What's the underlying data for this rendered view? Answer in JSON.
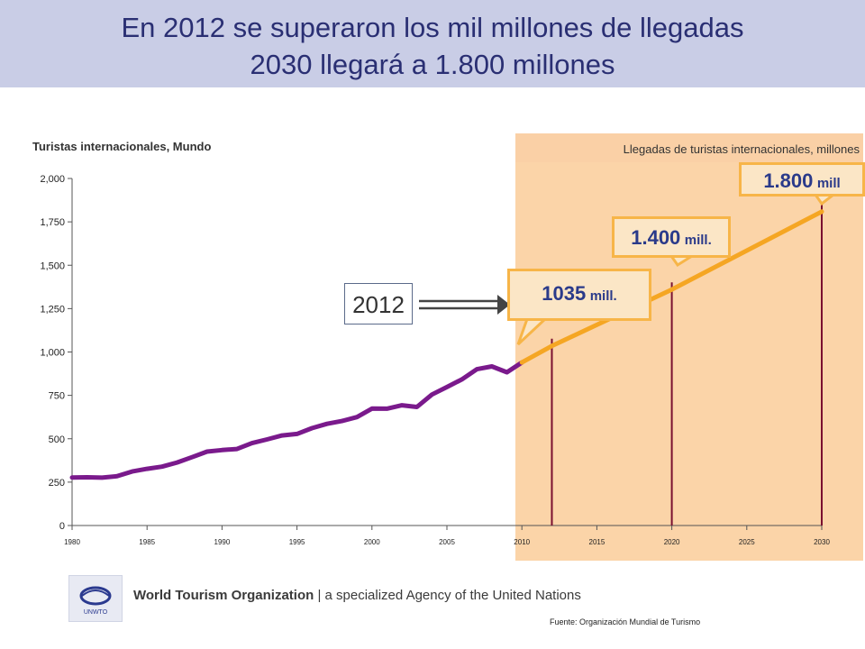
{
  "header": {
    "title_line1": "En 2012 se superaron los mil millones de llegadas",
    "title_line2": "2030 llegará a 1.800 millones"
  },
  "chart_data": {
    "type": "line",
    "title": "Turistas internacionales, Mundo",
    "forecast_caption": "Llegadas de turistas internacionales, millones",
    "xlim": [
      1980,
      2030
    ],
    "ylim": [
      0,
      2000
    ],
    "x_ticks": [
      "1980",
      "1985",
      "1990",
      "1995",
      "2000",
      "2005",
      "2010",
      "2015",
      "2020",
      "2025",
      "2030"
    ],
    "y_ticks": [
      "0",
      "250",
      "500",
      "750",
      "1,000",
      "1,250",
      "1,500",
      "1,750",
      "2,000"
    ],
    "series": [
      {
        "color": "#7a1a8c",
        "x": [
          1980,
          1981,
          1982,
          1983,
          1984,
          1985,
          1986,
          1987,
          1988,
          1989,
          1990,
          1991,
          1992,
          1993,
          1994,
          1995,
          1996,
          1997,
          1998,
          1999,
          2000,
          2001,
          2002,
          2003,
          2004,
          2005,
          2006,
          2007,
          2008,
          2009,
          2010
        ],
        "y": [
          277,
          278,
          276,
          284,
          311,
          327,
          339,
          363,
          394,
          426,
          435,
          441,
          475,
          496,
          519,
          528,
          561,
          586,
          602,
          625,
          674,
          673,
          693,
          683,
          755,
          798,
          842,
          901,
          917,
          883,
          940
        ]
      },
      {
        "color": "#f5a623",
        "x": [
          2010,
          2012,
          2020,
          2030
        ],
        "y": [
          940,
          1035,
          1360,
          1809
        ]
      }
    ],
    "markers": [
      {
        "x": 2012,
        "y": 1035
      },
      {
        "x": 2020,
        "y": 1360
      },
      {
        "x": 2030,
        "y": 1809
      }
    ],
    "forecast_from": 2010,
    "annotations": [
      {
        "value": "1035",
        "unit": "mill."
      },
      {
        "value": "1.400",
        "unit": "mill."
      },
      {
        "value": "1.800",
        "unit": "mill"
      }
    ],
    "highlight_year": "2012"
  },
  "footer": {
    "org_name": "World Tourism Organization",
    "org_tagline": " | a specialized Agency of the United Nations",
    "logo_text": "UNWTO",
    "source": "Fuente: Organización  Mundial de Turismo"
  }
}
